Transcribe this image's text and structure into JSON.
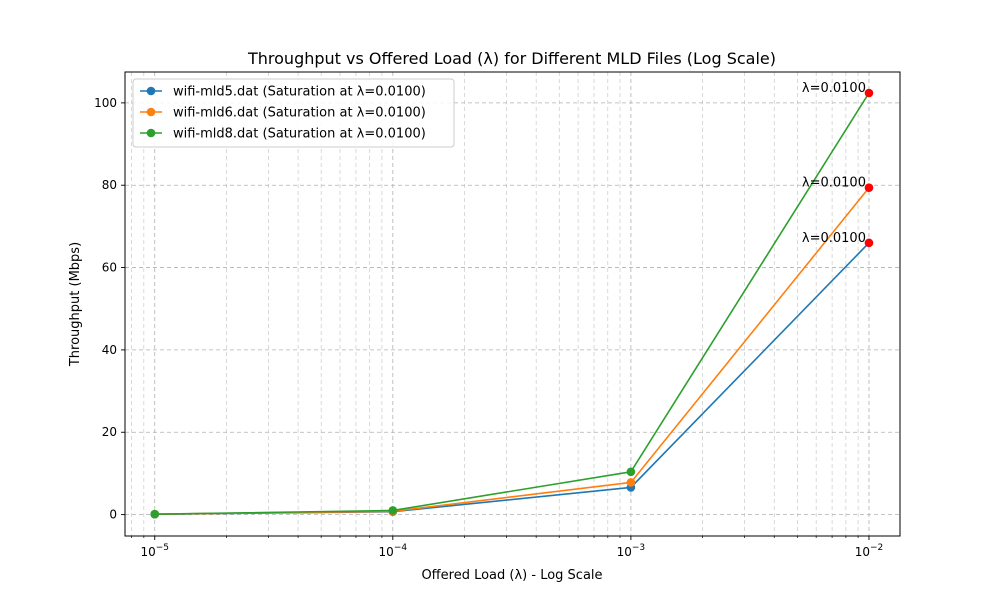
{
  "chart_data": {
    "type": "line",
    "title": "Throughput vs Offered Load (λ) for Different MLD Files (Log Scale)",
    "xlabel": "Offered Load (λ) - Log Scale",
    "ylabel": "Throughput (Mbps)",
    "xscale": "log",
    "xlim": [
      7.5e-06,
      0.0135
    ],
    "ylim": [
      -5.2,
      107.5
    ],
    "x": [
      1e-05,
      0.0001,
      0.001,
      0.01
    ],
    "x_tick_labels": [
      {
        "base": "10",
        "exp": "−5"
      },
      {
        "base": "10",
        "exp": "−4"
      },
      {
        "base": "10",
        "exp": "−3"
      },
      {
        "base": "10",
        "exp": "−2"
      }
    ],
    "y_ticks": [
      "0",
      "20",
      "40",
      "60",
      "80",
      "100"
    ],
    "grid": true,
    "legend_position": "upper-left",
    "series": [
      {
        "name": "wifi-mld5.dat (Saturation at λ=0.0100)",
        "color": "#1f77b4",
        "values": [
          0.1,
          0.7,
          6.6,
          66.0
        ]
      },
      {
        "name": "wifi-mld6.dat (Saturation at λ=0.0100)",
        "color": "#ff7f0e",
        "values": [
          0.1,
          0.8,
          7.8,
          79.4
        ]
      },
      {
        "name": "wifi-mld8.dat (Saturation at λ=0.0100)",
        "color": "#2ca02c",
        "values": [
          0.1,
          1.0,
          10.4,
          102.4
        ]
      }
    ],
    "saturation_marker_color": "#ff0000",
    "annotations": [
      {
        "text": "λ=0.0100",
        "x": 0.01,
        "y": 66.0
      },
      {
        "text": "λ=0.0100",
        "x": 0.01,
        "y": 79.4
      },
      {
        "text": "λ=0.0100",
        "x": 0.01,
        "y": 102.4
      }
    ]
  }
}
